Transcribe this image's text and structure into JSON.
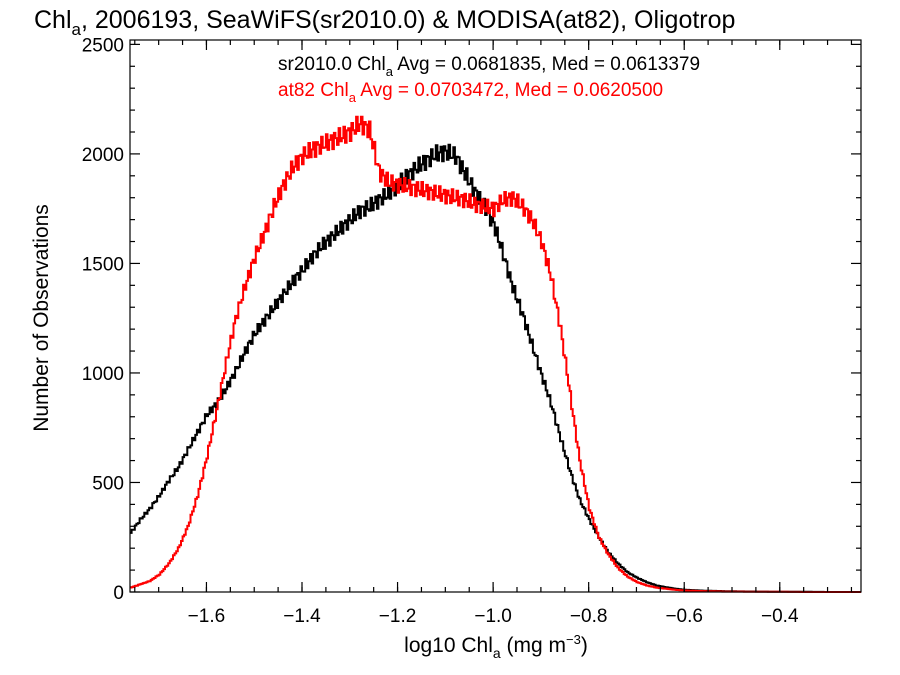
{
  "chart_data": {
    "type": "line",
    "title": {
      "pre": "Chl",
      "sub": "a",
      "post": ", 2006193, SeaWiFS(sr2010.0) & MODISA(at82), Oligotrop"
    },
    "xlabel": {
      "pre": "log10 Chl",
      "sub": "a",
      "mid": " (mg m",
      "sup": "−3",
      "post": ")"
    },
    "ylabel": "Number of Observations",
    "xlim": [
      -1.76,
      -0.23
    ],
    "ylim": [
      0,
      2520
    ],
    "x_ticks": [
      "−1.6",
      "−1.4",
      "−1.2",
      "−1.0",
      "−0.8",
      "−0.6",
      "−0.4"
    ],
    "x_tick_values": [
      -1.6,
      -1.4,
      -1.2,
      -1.0,
      -0.8,
      -0.6,
      -0.4
    ],
    "y_ticks": [
      "0",
      "500",
      "1000",
      "1500",
      "2000",
      "2500"
    ],
    "y_tick_values": [
      0,
      500,
      1000,
      1500,
      2000,
      2500
    ],
    "grid": false,
    "legend_position": "top-right",
    "series": [
      {
        "name": "sr2010.0",
        "color": "#000000",
        "legend": {
          "pre": "sr2010.0 Chl",
          "sub": "a",
          "post": " Avg = 0.0681835, Med = 0.0613379"
        },
        "x": [
          -1.76,
          -1.74,
          -1.72,
          -1.7,
          -1.68,
          -1.66,
          -1.64,
          -1.62,
          -1.6,
          -1.58,
          -1.56,
          -1.54,
          -1.52,
          -1.5,
          -1.48,
          -1.46,
          -1.44,
          -1.42,
          -1.4,
          -1.38,
          -1.36,
          -1.34,
          -1.32,
          -1.3,
          -1.28,
          -1.26,
          -1.24,
          -1.22,
          -1.2,
          -1.18,
          -1.16,
          -1.14,
          -1.12,
          -1.1,
          -1.08,
          -1.06,
          -1.04,
          -1.02,
          -1.0,
          -0.98,
          -0.96,
          -0.94,
          -0.92,
          -0.9,
          -0.88,
          -0.86,
          -0.84,
          -0.82,
          -0.8,
          -0.78,
          -0.76,
          -0.74,
          -0.72,
          -0.7,
          -0.68,
          -0.66,
          -0.64,
          -0.62,
          -0.6,
          -0.58,
          -0.56,
          -0.54,
          -0.52,
          -0.5,
          -0.45,
          -0.4,
          -0.35,
          -0.3,
          -0.23
        ],
        "y": [
          270,
          330,
          380,
          440,
          510,
          570,
          650,
          730,
          810,
          860,
          930,
          1010,
          1100,
          1180,
          1240,
          1300,
          1360,
          1420,
          1470,
          1530,
          1580,
          1620,
          1660,
          1700,
          1740,
          1760,
          1790,
          1820,
          1860,
          1900,
          1940,
          1970,
          2000,
          2010,
          1990,
          1910,
          1830,
          1760,
          1680,
          1540,
          1390,
          1270,
          1130,
          990,
          860,
          700,
          550,
          420,
          330,
          250,
          180,
          130,
          90,
          65,
          45,
          30,
          22,
          15,
          10,
          8,
          6,
          5,
          4,
          3,
          2,
          1,
          1,
          0,
          0
        ]
      },
      {
        "name": "at82",
        "color": "#ff0000",
        "legend": {
          "pre": "at82 Chl",
          "sub": "a",
          "post": " Avg = 0.0703472, Med = 0.0620500"
        },
        "x": [
          -1.76,
          -1.74,
          -1.72,
          -1.7,
          -1.68,
          -1.66,
          -1.64,
          -1.62,
          -1.6,
          -1.58,
          -1.56,
          -1.54,
          -1.52,
          -1.5,
          -1.48,
          -1.46,
          -1.44,
          -1.42,
          -1.4,
          -1.38,
          -1.36,
          -1.34,
          -1.32,
          -1.3,
          -1.28,
          -1.26,
          -1.24,
          -1.22,
          -1.2,
          -1.18,
          -1.16,
          -1.14,
          -1.12,
          -1.1,
          -1.08,
          -1.06,
          -1.04,
          -1.02,
          -1.0,
          -0.98,
          -0.96,
          -0.94,
          -0.92,
          -0.9,
          -0.88,
          -0.86,
          -0.84,
          -0.82,
          -0.8,
          -0.78,
          -0.76,
          -0.74,
          -0.72,
          -0.7,
          -0.68,
          -0.66,
          -0.64,
          -0.62,
          -0.6,
          -0.58,
          -0.56,
          -0.54,
          -0.52,
          -0.5,
          -0.45,
          -0.4,
          -0.35,
          -0.3,
          -0.23
        ],
        "y": [
          20,
          35,
          50,
          80,
          130,
          200,
          300,
          440,
          620,
          830,
          1050,
          1250,
          1400,
          1530,
          1640,
          1760,
          1860,
          1940,
          1990,
          2020,
          2040,
          2060,
          2080,
          2100,
          2140,
          2110,
          1920,
          1870,
          1860,
          1850,
          1840,
          1830,
          1820,
          1810,
          1800,
          1790,
          1770,
          1760,
          1750,
          1790,
          1800,
          1760,
          1700,
          1600,
          1440,
          1200,
          900,
          600,
          380,
          250,
          170,
          110,
          70,
          45,
          30,
          20,
          15,
          10,
          7,
          5,
          4,
          3,
          2,
          2,
          1,
          1,
          0,
          0,
          0
        ]
      }
    ]
  }
}
